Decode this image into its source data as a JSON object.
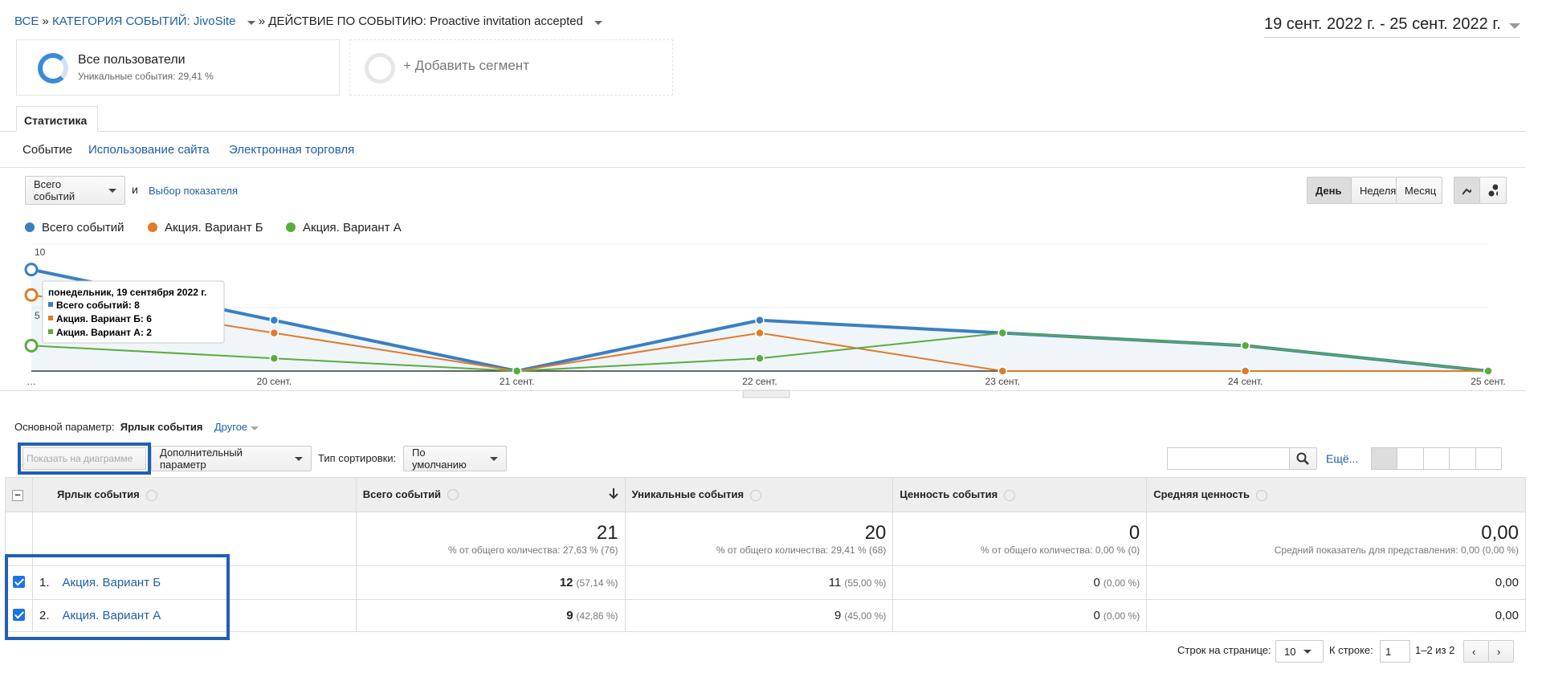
{
  "breadcrumb": {
    "all": "ВСЕ",
    "separator": "»",
    "category_label": "КАТЕГОРИЯ СОБЫТИЙ:",
    "category": "JivoSite",
    "action_label": "ДЕЙСТВИЕ ПО СОБЫТИЮ:",
    "action": "Proactive invitation accepted"
  },
  "date_range": "19 сент. 2022 г. - 25 сент. 2022 г.",
  "segments": [
    {
      "name": "Все пользователи",
      "detail": "Уникальные события: 29,41 %"
    },
    {
      "name": "+ Добавить сегмент"
    }
  ],
  "tab": "Статистика",
  "subtabs": [
    "Событие",
    "Использование сайта",
    "Электронная торговля"
  ],
  "metric_select": "Всего событий",
  "and": "и",
  "metric_choice": "Выбор показателя",
  "periods": [
    "День",
    "Неделя",
    "Месяц"
  ],
  "chart_data": {
    "type": "line",
    "categories": [
      "…",
      "20 сент.",
      "21 сент.",
      "22 сент.",
      "23 сент.",
      "24 сент.",
      "25 сент."
    ],
    "series": [
      {
        "name": "Всего событий",
        "color": "#3a7fc1",
        "values": [
          8,
          4,
          0,
          4,
          3,
          2,
          0
        ]
      },
      {
        "name": "Акция. Вариант Б",
        "color": "#e07b27",
        "values": [
          6,
          3,
          0,
          3,
          0,
          0,
          0
        ]
      },
      {
        "name": "Акция. Вариант А",
        "color": "#5aac3c",
        "values": [
          2,
          1,
          0,
          1,
          3,
          2,
          0
        ]
      }
    ],
    "ylim": [
      0,
      10
    ],
    "yticks": [
      5,
      10
    ],
    "grid": true
  },
  "tooltip": {
    "title": "понедельник, 19 сентября 2022 г.",
    "lines": [
      "Всего событий: 8",
      "Акция. Вариант Б: 6",
      "Акция. Вариант А: 2"
    ]
  },
  "dimension": {
    "label": "Основной параметр:",
    "value": "Ярлык события",
    "other": "Другое"
  },
  "toolbar": {
    "plot": "Показать на диаграмме",
    "secondary": "Дополнительный параметр",
    "sort_label": "Тип сортировки:",
    "sort": "По умолчанию",
    "more": "Ещё..."
  },
  "table": {
    "headers": [
      "Ярлык события",
      "Всего событий",
      "Уникальные события",
      "Ценность события",
      "Средняя ценность"
    ],
    "totals": [
      {
        "value": "21",
        "note": "% от общего количества: 27,63 % (76)"
      },
      {
        "value": "20",
        "note": "% от общего количества: 29,41 % (68)"
      },
      {
        "value": "0",
        "note": "% от общего количества: 0,00 % (0)"
      },
      {
        "value": "0,00",
        "note": "Средний показатель для представления: 0,00 (0,00 %)"
      }
    ],
    "rows": [
      {
        "index": "1.",
        "label": "Акция. Вариант Б",
        "cells": [
          {
            "value": "12",
            "pct": "(57,14 %)"
          },
          {
            "value": "11",
            "pct": "(55,00 %)"
          },
          {
            "value": "0",
            "pct": "(0,00 %)"
          },
          {
            "value": "0,00"
          }
        ]
      },
      {
        "index": "2.",
        "label": "Акция. Вариант А",
        "cells": [
          {
            "value": "9",
            "pct": "(42,86 %)"
          },
          {
            "value": "9",
            "pct": "(45,00 %)"
          },
          {
            "value": "0",
            "pct": "(0,00 %)"
          },
          {
            "value": "0,00"
          }
        ]
      }
    ]
  },
  "pagination": {
    "rows_label": "Строк на странице:",
    "rows": "10",
    "goto_label": "К строке:",
    "goto": "1",
    "range": "1–2 из 2"
  }
}
